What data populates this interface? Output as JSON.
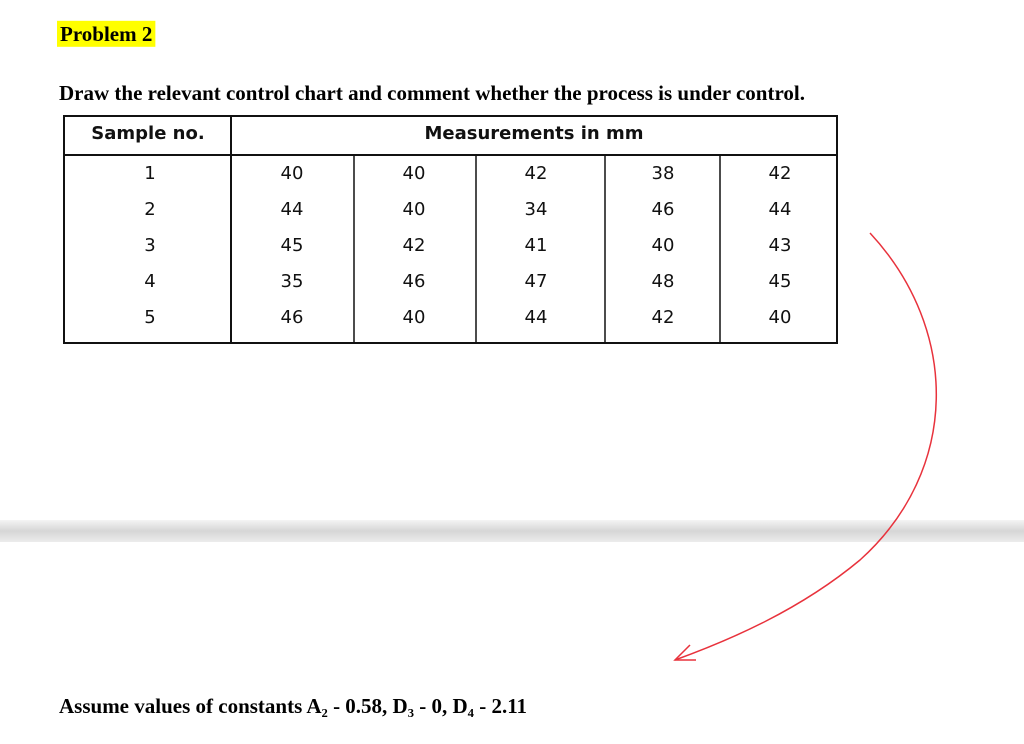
{
  "header": {
    "title": "Problem 2"
  },
  "question": "Draw the relevant control chart and comment whether the process is under control.",
  "table": {
    "columns": [
      "Sample no.",
      "Measurements in mm"
    ],
    "rows": [
      [
        1,
        40,
        40,
        42,
        38,
        42
      ],
      [
        2,
        44,
        40,
        34,
        46,
        44
      ],
      [
        3,
        45,
        42,
        41,
        40,
        43
      ],
      [
        4,
        35,
        46,
        47,
        48,
        45
      ],
      [
        5,
        46,
        40,
        44,
        42,
        40
      ]
    ]
  },
  "footer": "Assume values of constants A₂ - 0.58, D₃ - 0, D₄ - 2.11"
}
